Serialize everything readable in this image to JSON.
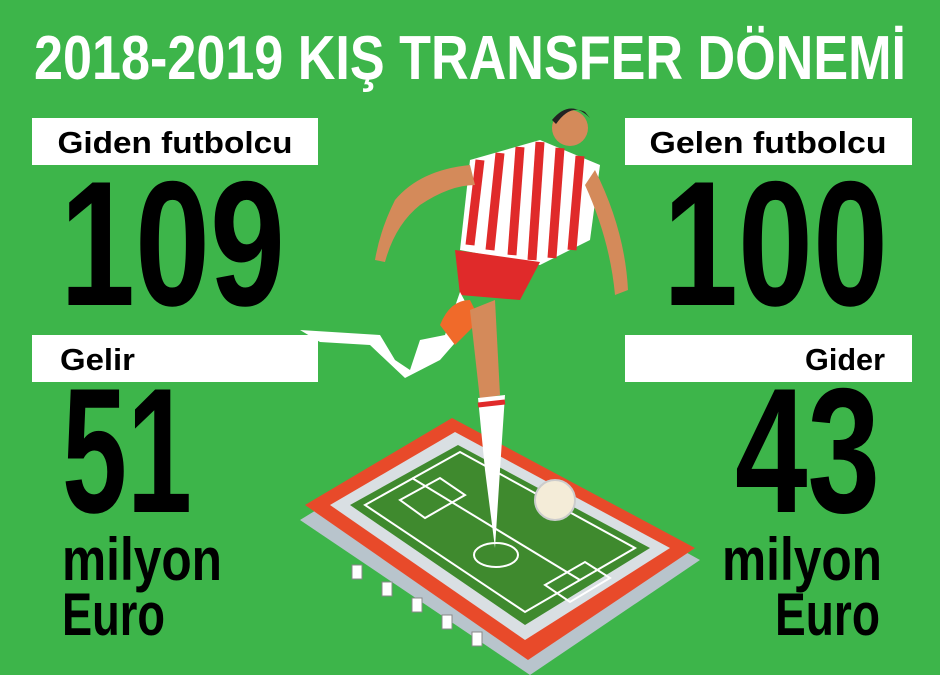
{
  "title": "2018-2019 KIŞ TRANSFER DÖNEMİ",
  "stats": [
    {
      "label": "Giden futbolcu",
      "value": 109
    },
    {
      "label": "Gelen futbolcu",
      "value": 100
    },
    {
      "label": "Gelir",
      "value": 51,
      "unit": [
        "milyon",
        "Euro"
      ]
    },
    {
      "label": "Gider",
      "value": 43,
      "unit": [
        "milyon",
        "Euro"
      ]
    }
  ]
}
